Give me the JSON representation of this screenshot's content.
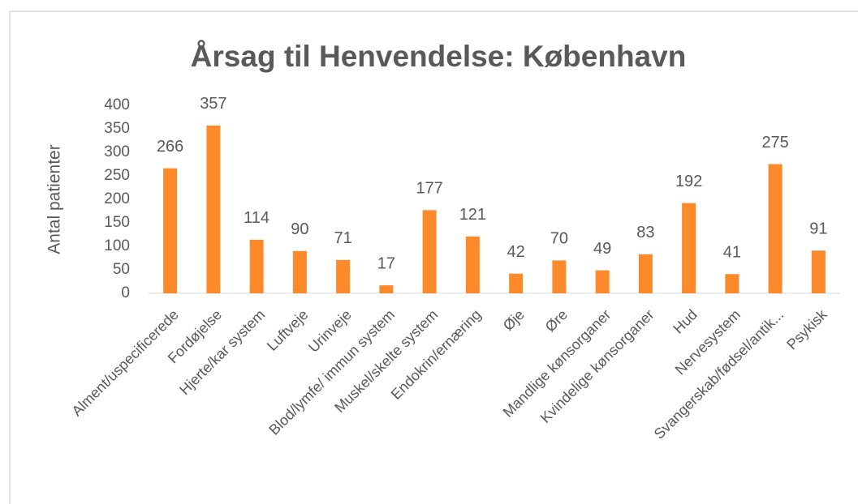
{
  "chart_data": {
    "type": "bar",
    "title": "Årsag til Henvendelse: København",
    "y_label": "Antal patienter",
    "categories": [
      "Alment/uspecificerede",
      "Fordøjelse",
      "Hjerte/kar system",
      "Luftveje",
      "Urinveje",
      "Blod/lymfe/ immun system",
      "Muskel/skelte system",
      "Endokrin/ernæring",
      "Øje",
      "Øre",
      "Mandlige kønsorganer",
      "Kvindelige kønsorganer",
      "Hud",
      "Nervesystem",
      "Svangerskab/fødsel/antik...",
      "Psykisk"
    ],
    "values": [
      266,
      357,
      114,
      90,
      71,
      17,
      177,
      121,
      42,
      70,
      49,
      83,
      192,
      41,
      275,
      91
    ],
    "color": "#fd8a2a",
    "ylim": [
      0,
      400
    ],
    "yticks": [
      0,
      50,
      100,
      150,
      200,
      250,
      300,
      350,
      400
    ],
    "grid": false
  }
}
